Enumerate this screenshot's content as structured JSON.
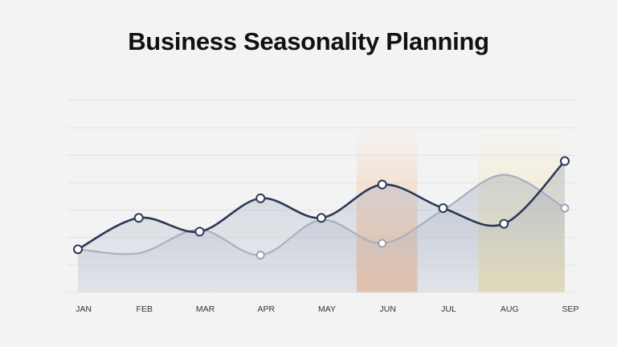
{
  "title": "Business Seasonality Planning",
  "chart_data": {
    "type": "line",
    "title": "Business Seasonality Planning",
    "xlabel": "",
    "ylabel": "",
    "categories": [
      "JAN",
      "FEB",
      "MAR",
      "APR",
      "MAY",
      "JUN",
      "JUL",
      "AUG",
      "SEP"
    ],
    "ylim": [
      0,
      100
    ],
    "grid": true,
    "legend": "none",
    "series": [
      {
        "values": [
          22,
          38,
          31,
          48,
          38,
          55,
          43,
          35,
          67
        ],
        "color": "#2b3a55",
        "style": "solid, markers, filled area"
      },
      {
        "values": [
          22,
          20,
          32,
          19,
          37,
          25,
          42,
          60,
          43
        ],
        "color": "#a8b0be",
        "style": "solid, filled area"
      }
    ],
    "highlight_bands": [
      {
        "from": "JUN",
        "to": "JUL",
        "color": "#f6b482"
      },
      {
        "from": "AUG",
        "to": "SEP",
        "color": "#f5e39a"
      }
    ]
  }
}
